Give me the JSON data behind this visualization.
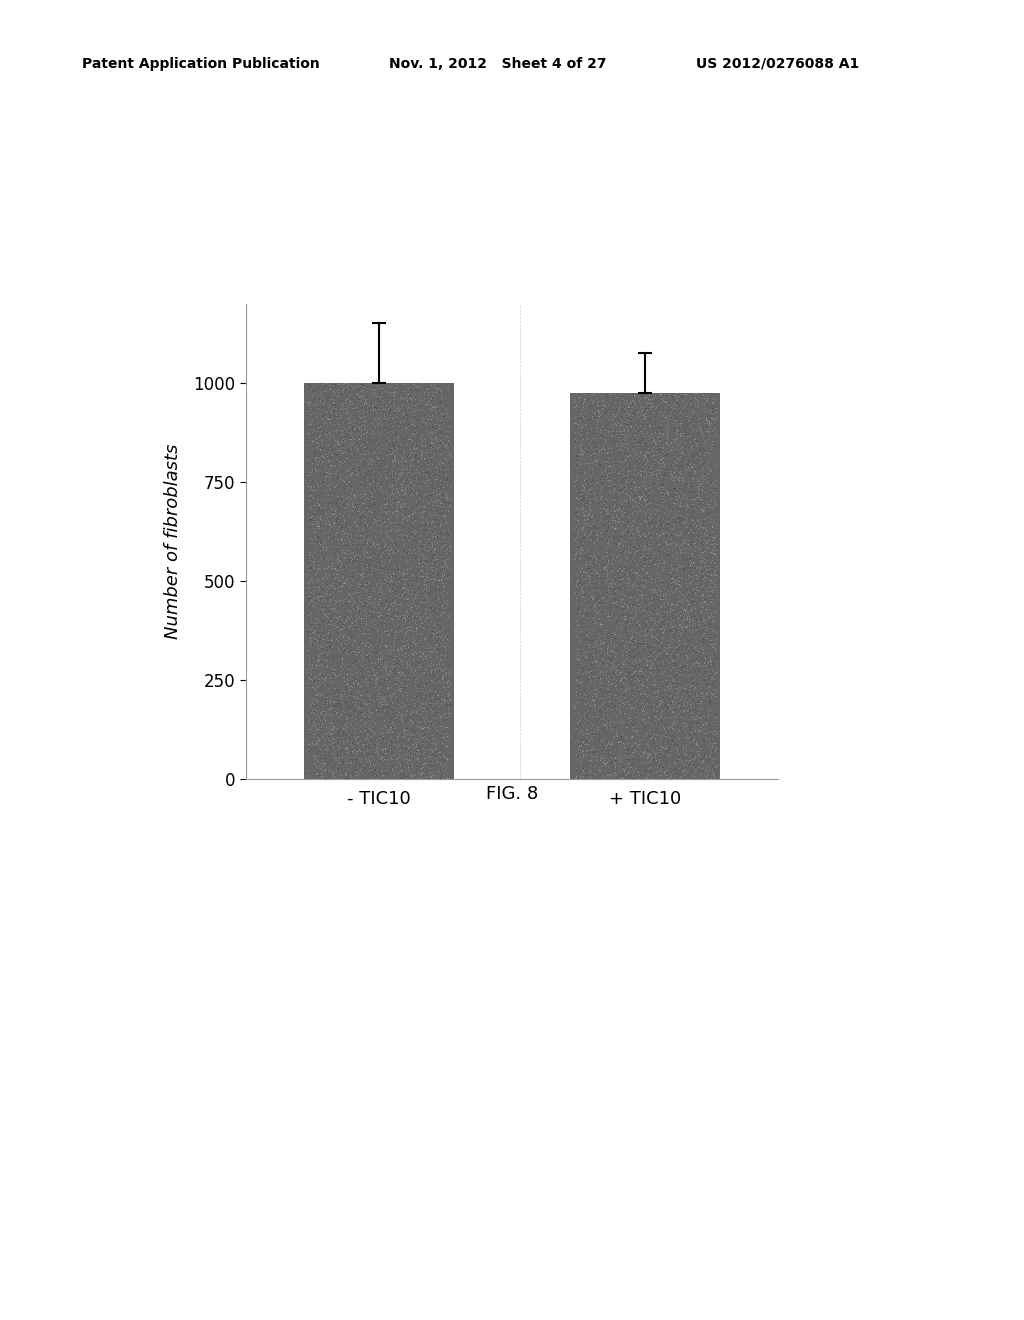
{
  "categories": [
    "- TIC10",
    "+ TIC10"
  ],
  "values": [
    1000,
    975
  ],
  "errors": [
    150,
    100
  ],
  "bar_color": "#666666",
  "bar_width": 0.45,
  "ylabel": "Number of fibroblasts",
  "yticks": [
    0,
    250,
    500,
    750,
    1000
  ],
  "ylim": [
    0,
    1200
  ],
  "figure_label": "FIG. 8",
  "patent_left": "Patent Application Publication",
  "patent_mid": "Nov. 1, 2012   Sheet 4 of 27",
  "patent_right": "US 2012/0276088 A1",
  "bg_color": "#ffffff",
  "ylabel_fontsize": 13,
  "tick_fontsize": 12,
  "xlabel_fontsize": 13,
  "figure_label_fontsize": 13,
  "patent_fontsize": 10,
  "error_capsize": 5,
  "error_linewidth": 1.5,
  "bar_positions": [
    0.3,
    1.1
  ]
}
